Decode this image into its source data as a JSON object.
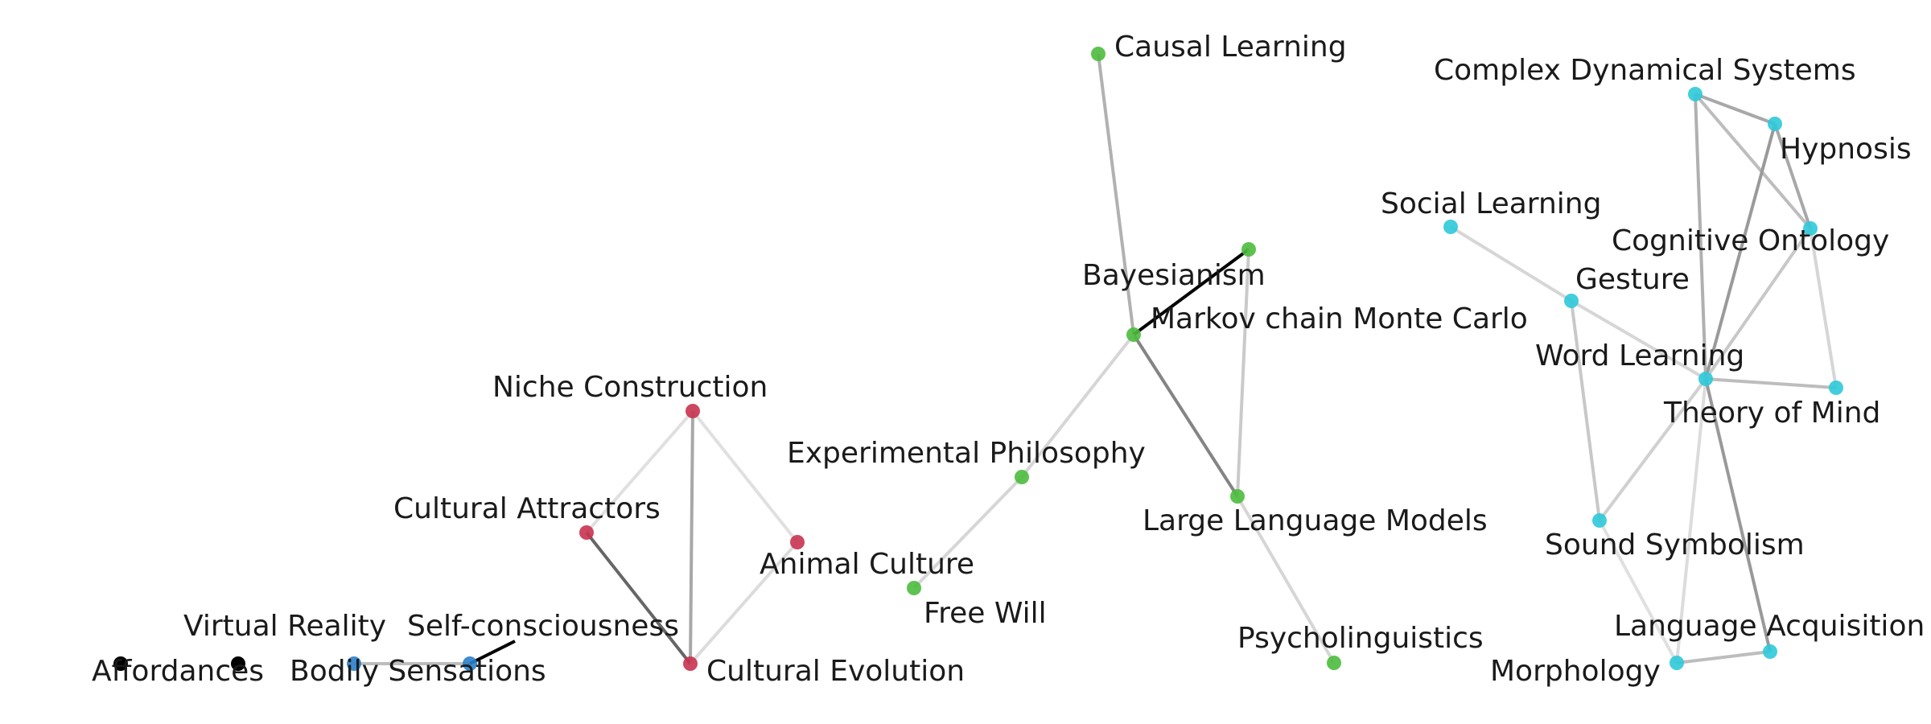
{
  "graph": {
    "clusters": {
      "red": "#c8334f",
      "green": "#4cbb3d",
      "cyan": "#2ec9d9",
      "blue": "#2a7fc9",
      "black": "#000000"
    },
    "nodes": [
      {
        "id": "causal-learning",
        "label": "Causal Learning",
        "cluster": "green"
      },
      {
        "id": "complex-dynamical-systems",
        "label": "Complex Dynamical Systems",
        "cluster": "cyan"
      },
      {
        "id": "hypnosis",
        "label": "Hypnosis",
        "cluster": "cyan"
      },
      {
        "id": "social-learning",
        "label": "Social Learning",
        "cluster": "cyan"
      },
      {
        "id": "cognitive-ontology",
        "label": "Cognitive Ontology",
        "cluster": "cyan"
      },
      {
        "id": "bayesianism",
        "label": "Bayesianism",
        "cluster": "green"
      },
      {
        "id": "gesture",
        "label": "Gesture",
        "cluster": "cyan"
      },
      {
        "id": "markov-chain-monte-carlo",
        "label": "Markov chain Monte Carlo",
        "cluster": "green"
      },
      {
        "id": "word-learning",
        "label": "Word Learning",
        "cluster": "cyan"
      },
      {
        "id": "niche-construction",
        "label": "Niche Construction",
        "cluster": "red"
      },
      {
        "id": "theory-of-mind",
        "label": "Theory of Mind",
        "cluster": "cyan"
      },
      {
        "id": "experimental-philosophy",
        "label": "Experimental Philosophy",
        "cluster": "green"
      },
      {
        "id": "cultural-attractors",
        "label": "Cultural Attractors",
        "cluster": "red"
      },
      {
        "id": "large-language-models",
        "label": "Large Language Models",
        "cluster": "green"
      },
      {
        "id": "sound-symbolism",
        "label": "Sound Symbolism",
        "cluster": "cyan"
      },
      {
        "id": "animal-culture",
        "label": "Animal Culture",
        "cluster": "red"
      },
      {
        "id": "free-will",
        "label": "Free Will",
        "cluster": "green"
      },
      {
        "id": "virtual-reality",
        "label": "Virtual Reality",
        "cluster": "black"
      },
      {
        "id": "self-consciousness",
        "label": "Self-consciousness",
        "cluster": "blue"
      },
      {
        "id": "language-acquisition",
        "label": "Language Acquisition",
        "cluster": "cyan"
      },
      {
        "id": "psycholinguistics",
        "label": "Psycholinguistics",
        "cluster": "green"
      },
      {
        "id": "affordances",
        "label": "Affordances",
        "cluster": "black"
      },
      {
        "id": "bodily-sensations",
        "label": "Bodily Sensations",
        "cluster": "blue"
      },
      {
        "id": "cultural-evolution",
        "label": "Cultural Evolution",
        "cluster": "red"
      },
      {
        "id": "morphology",
        "label": "Morphology",
        "cluster": "cyan"
      }
    ]
  }
}
